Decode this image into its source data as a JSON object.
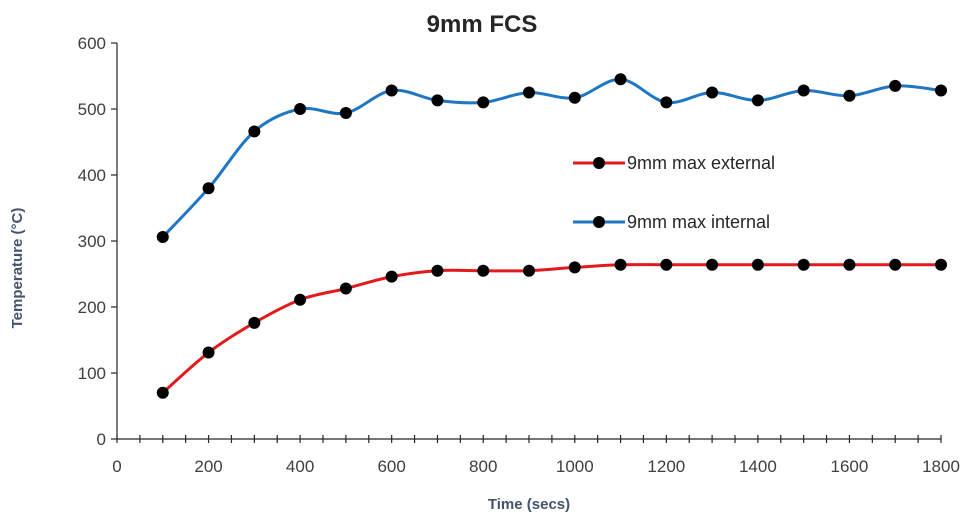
{
  "chart_data": {
    "type": "line",
    "title": "9mm FCS",
    "xlabel": "Time (secs)",
    "ylabel": "Temperature (°C)",
    "xlim": [
      0,
      1800
    ],
    "ylim": [
      0,
      600
    ],
    "x_ticks": [
      0,
      200,
      400,
      600,
      800,
      1000,
      1200,
      1400,
      1600,
      1800
    ],
    "y_ticks": [
      0,
      100,
      200,
      300,
      400,
      500,
      600
    ],
    "x_minor_step": 50,
    "grid": false,
    "legend_position": "right",
    "x": [
      100,
      200,
      300,
      400,
      500,
      600,
      700,
      800,
      900,
      1000,
      1100,
      1200,
      1300,
      1400,
      1500,
      1600,
      1700,
      1800
    ],
    "series": [
      {
        "name": "9mm max external",
        "color": "#e31a1c",
        "values": [
          70,
          131,
          176,
          211,
          228,
          246,
          255,
          255,
          255,
          260,
          264,
          264,
          264,
          264,
          264,
          264,
          264,
          264
        ]
      },
      {
        "name": "9mm max internal",
        "color": "#1f77c4",
        "values": [
          306,
          380,
          466,
          500,
          494,
          528,
          513,
          510,
          525,
          517,
          545,
          510,
          525,
          513,
          528,
          520,
          535,
          528
        ]
      }
    ],
    "marker_color": "#000000"
  }
}
